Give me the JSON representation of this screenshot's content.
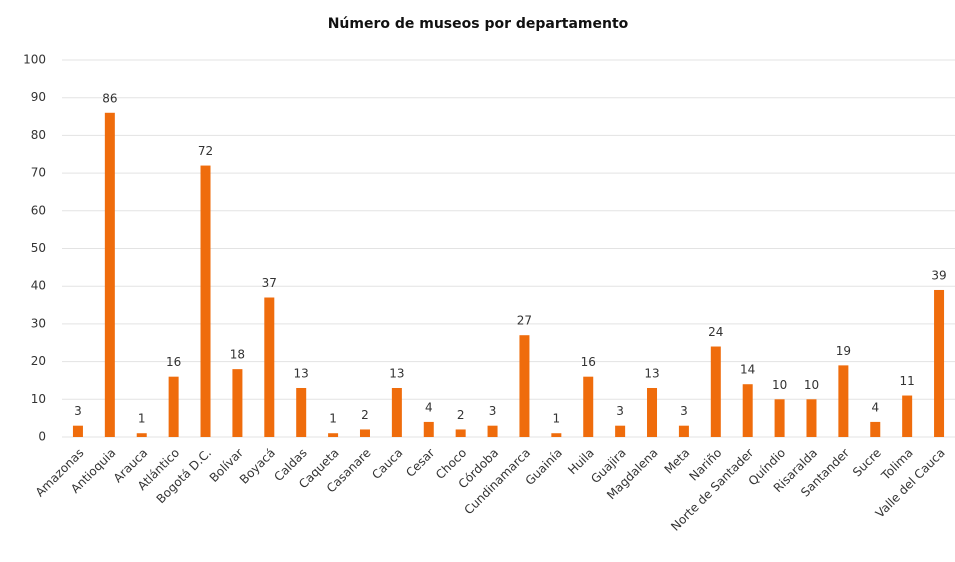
{
  "chart_data": {
    "type": "bar",
    "title": "Número de museos por departamento",
    "categories": [
      "Amazonas",
      "Antioquia",
      "Arauca",
      "Atlántico",
      "Bogotá D.C.",
      "Bolívar",
      "Boyacá",
      "Caldas",
      "Caqueta",
      "Casanare",
      "Cauca",
      "Cesar",
      "Choco",
      "Córdoba",
      "Cundinamarca",
      "Guainía",
      "Huila",
      "Guajira",
      "Magdalena",
      "Meta",
      "Nariño",
      "Norte de Santader",
      "Quíndio",
      "Risaralda",
      "Santander",
      "Sucre",
      "Tolima",
      "Valle del Cauca"
    ],
    "values": [
      3,
      86,
      1,
      16,
      72,
      18,
      37,
      13,
      1,
      2,
      13,
      4,
      2,
      3,
      27,
      1,
      16,
      3,
      13,
      3,
      24,
      14,
      10,
      10,
      19,
      4,
      11,
      39
    ],
    "color": "#ef6c0c",
    "ylim": [
      0,
      100
    ],
    "yticks": [
      0,
      10,
      20,
      30,
      40,
      50,
      60,
      70,
      80,
      90,
      100
    ],
    "grid": true
  }
}
